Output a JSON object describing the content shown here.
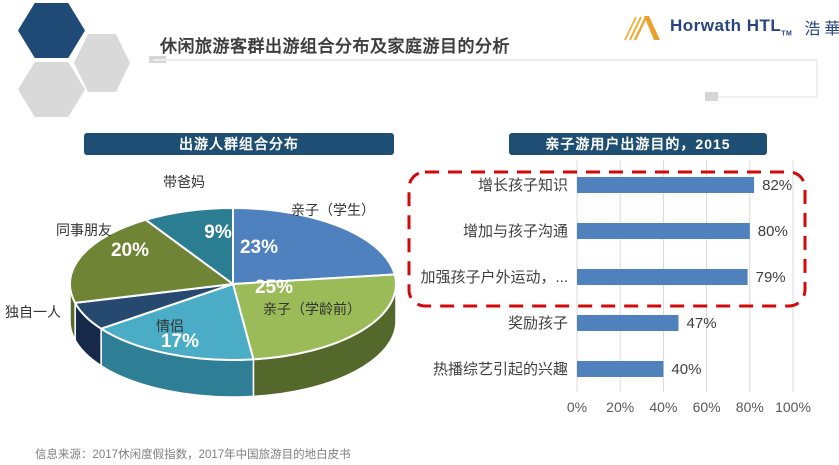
{
  "slide": {
    "title": "休闲旅游客群出游组合分布及家庭游目的分析",
    "source": "信息来源：2017休闲度假指数，2017年中国旅游目的地白皮书",
    "accent_navy": "#1f4e73",
    "hex_navy": "#1f4a75",
    "hex_gray": "#d9d9d9"
  },
  "logo": {
    "name": "Horwath HTL",
    "tm": "TM",
    "cn": "浩華",
    "text_color": "#29457e",
    "gold": "#efae37"
  },
  "pie_panel": {
    "header": "出游人群组合分布"
  },
  "bar_panel": {
    "header": "亲子游用户出游目的，2015"
  },
  "chart_data": [
    {
      "type": "pie",
      "style": "3d-pie",
      "title": "出游人群组合分布",
      "labels": [
        "亲子（学生）",
        "亲子（学龄前）",
        "情侣",
        "独自一人",
        "同事朋友",
        "带爸妈"
      ],
      "values": [
        23,
        25,
        17,
        6,
        20,
        9
      ],
      "display_pct": [
        "23%",
        "25%",
        "17%",
        "",
        "20%",
        "9%"
      ],
      "colors": [
        "#4e81bd",
        "#9bbb59",
        "#4bacc6",
        "#26496f",
        "#6f8434",
        "#2b7d92"
      ],
      "side_colors": [
        "#36598c",
        "#55682c",
        "#2e7f96",
        "#16294b",
        "#566a2d",
        "#1d5c6e"
      ],
      "start_angle_deg": 0,
      "direction": "clockwise",
      "note": "独自一人 slice shows no percentage label"
    },
    {
      "type": "bar",
      "orientation": "horizontal",
      "title": "亲子游用户出游目的，2015",
      "categories": [
        "增长孩子知识",
        "增加与孩子沟通",
        "加强孩子户外运动，...",
        "奖励孩子",
        "热播综艺引起的兴趣"
      ],
      "values": [
        82,
        80,
        79,
        47,
        40
      ],
      "value_labels": [
        "82%",
        "80%",
        "79%",
        "47%",
        "40%"
      ],
      "x_ticks": [
        "0%",
        "20%",
        "40%",
        "60%",
        "80%",
        "100%"
      ],
      "xlim": [
        0,
        100
      ],
      "grid": true,
      "bar_color": "#4f81bd",
      "grid_color": "#d9d9d9",
      "label_color": "#3f3f3f",
      "tick_color": "#595959",
      "annotation": {
        "shape": "red-dashed-rounded-rect",
        "around": "top 3 bars",
        "color": "#d00a0a"
      }
    }
  ]
}
